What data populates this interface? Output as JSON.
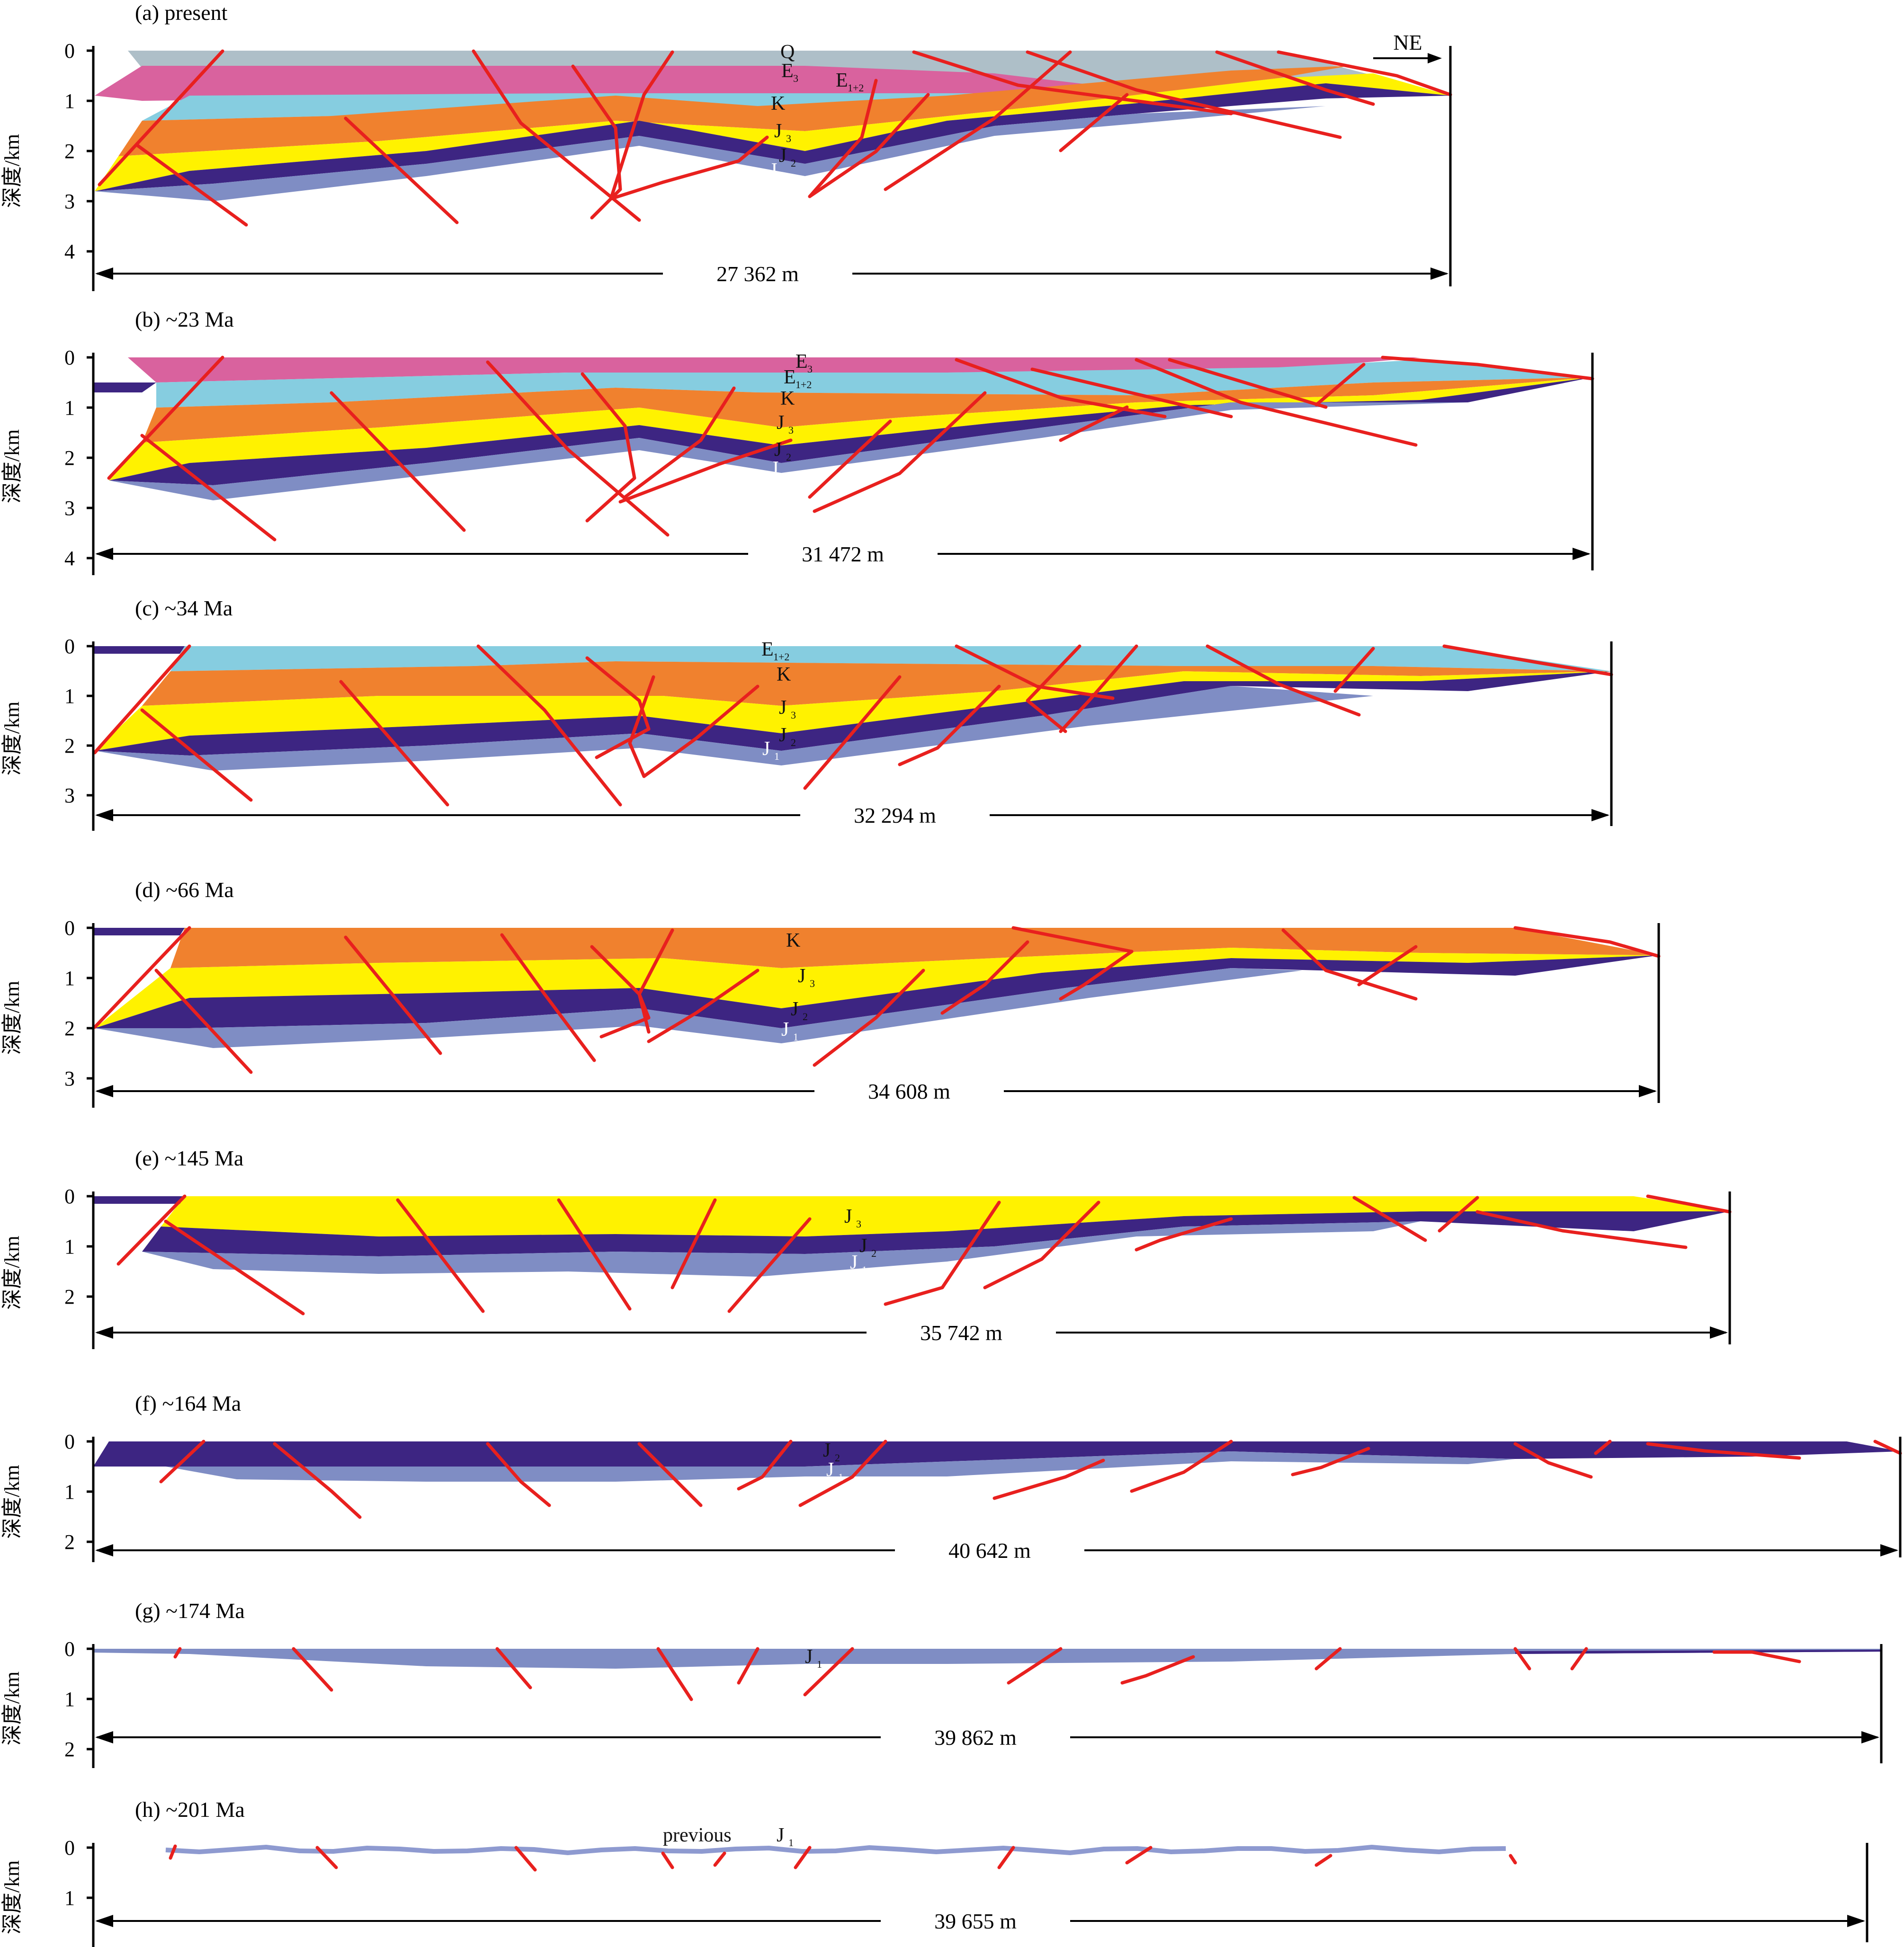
{
  "figure": {
    "y_axis_label": "深度/km",
    "direction": "NE",
    "colors": {
      "Q": "#aebfc8",
      "E3": "#d9629e",
      "E1+2": "#86cde0",
      "K": "#f0812e",
      "J3": "#fff200",
      "J2": "#3d2582",
      "J1": "#7f8dc4",
      "J1_previous": "#8e9ad0",
      "fault": "#e8201e"
    },
    "panels": [
      {
        "id": "a",
        "title": "(a) present",
        "section_width": "27 362 m",
        "depth_ticks": [
          "0",
          "1",
          "2",
          "3",
          "4"
        ],
        "units": [
          {
            "code": "Q",
            "base": "Q",
            "sub": ""
          },
          {
            "code": "E3",
            "base": "E",
            "sub": "3"
          },
          {
            "code": "E1+2",
            "base": "E",
            "sub": "1+2"
          },
          {
            "code": "K",
            "base": "K",
            "sub": ""
          },
          {
            "code": "J3",
            "base": "J",
            "sub": "3"
          },
          {
            "code": "J2",
            "base": "J",
            "sub": "2"
          },
          {
            "code": "J1",
            "base": "J",
            "sub": "1"
          }
        ]
      },
      {
        "id": "b",
        "title": "(b) ~23 Ma",
        "section_width": "31 472 m",
        "depth_ticks": [
          "0",
          "1",
          "2",
          "3",
          "4"
        ],
        "units": [
          {
            "code": "E3",
            "base": "E",
            "sub": "3"
          },
          {
            "code": "E1+2",
            "base": "E",
            "sub": "1+2"
          },
          {
            "code": "K",
            "base": "K",
            "sub": ""
          },
          {
            "code": "J3",
            "base": "J",
            "sub": "3"
          },
          {
            "code": "J2",
            "base": "J",
            "sub": "2"
          },
          {
            "code": "J1",
            "base": "J",
            "sub": "1"
          }
        ]
      },
      {
        "id": "c",
        "title": "(c) ~34 Ma",
        "section_width": "32 294 m",
        "depth_ticks": [
          "0",
          "1",
          "2",
          "3"
        ],
        "units": [
          {
            "code": "E1+2",
            "base": "E",
            "sub": "1+2"
          },
          {
            "code": "K",
            "base": "K",
            "sub": ""
          },
          {
            "code": "J3",
            "base": "J",
            "sub": "3"
          },
          {
            "code": "J2",
            "base": "J",
            "sub": "2"
          },
          {
            "code": "J1",
            "base": "J",
            "sub": "1"
          }
        ]
      },
      {
        "id": "d",
        "title": "(d) ~66 Ma",
        "section_width": "34 608 m",
        "depth_ticks": [
          "0",
          "1",
          "2",
          "3"
        ],
        "units": [
          {
            "code": "K",
            "base": "K",
            "sub": ""
          },
          {
            "code": "J3",
            "base": "J",
            "sub": "3"
          },
          {
            "code": "J2",
            "base": "J",
            "sub": "2"
          },
          {
            "code": "J1",
            "base": "J",
            "sub": "1"
          }
        ]
      },
      {
        "id": "e",
        "title": "(e) ~145 Ma",
        "section_width": "35 742 m",
        "depth_ticks": [
          "0",
          "1",
          "2"
        ],
        "units": [
          {
            "code": "J3",
            "base": "J",
            "sub": "3"
          },
          {
            "code": "J2",
            "base": "J",
            "sub": "2"
          },
          {
            "code": "J1",
            "base": "J",
            "sub": "1"
          }
        ]
      },
      {
        "id": "f",
        "title": "(f) ~164 Ma",
        "section_width": "40 642 m",
        "depth_ticks": [
          "0",
          "1",
          "2"
        ],
        "units": [
          {
            "code": "J2",
            "base": "J",
            "sub": "2"
          },
          {
            "code": "J1",
            "base": "J",
            "sub": "1"
          }
        ]
      },
      {
        "id": "g",
        "title": "(g) ~174 Ma",
        "section_width": "39 862 m",
        "depth_ticks": [
          "0",
          "1",
          "2"
        ],
        "units": [
          {
            "code": "J1",
            "base": "J",
            "sub": "1"
          }
        ]
      },
      {
        "id": "h",
        "title": "(h) ~201 Ma",
        "section_width": "39 655 m",
        "depth_ticks": [
          "0",
          "1"
        ],
        "units": [
          {
            "code": "J1",
            "base": "J",
            "sub": "1",
            "prefix": "previous"
          }
        ]
      }
    ]
  }
}
